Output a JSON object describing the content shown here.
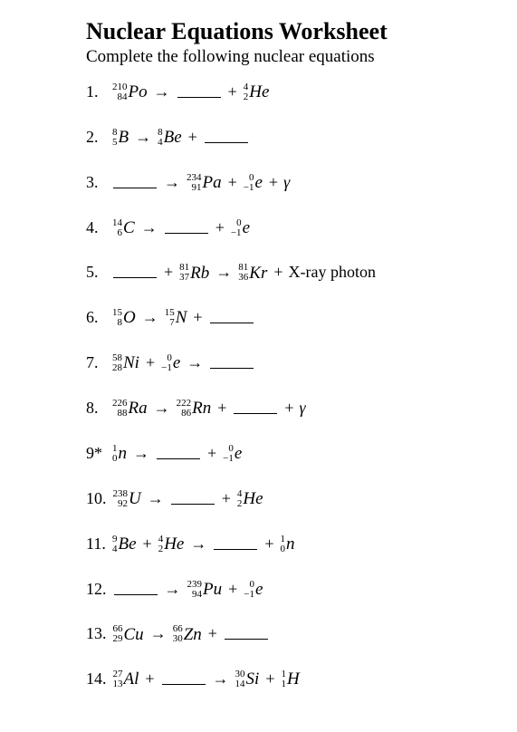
{
  "title": "Nuclear Equations Worksheet",
  "subtitle": "Complete the following nuclear equations",
  "blank": "",
  "equations": [
    {
      "n": "1.",
      "parts": [
        [
          "nuc",
          "210",
          "84",
          "Po"
        ],
        [
          "arr"
        ],
        [
          "blank"
        ],
        [
          "plus"
        ],
        [
          "nuc",
          "4",
          "2",
          "He"
        ]
      ]
    },
    {
      "n": "2.",
      "parts": [
        [
          "nuc",
          "8",
          "5",
          "B"
        ],
        [
          "arr"
        ],
        [
          "nuc",
          "8",
          "4",
          "Be"
        ],
        [
          "plus"
        ],
        [
          "blank"
        ]
      ]
    },
    {
      "n": "3.",
      "parts": [
        [
          "blank"
        ],
        [
          "arr"
        ],
        [
          "nuc",
          "234",
          "91",
          "Pa"
        ],
        [
          "plus"
        ],
        [
          "nuc",
          "0",
          "−1",
          "e"
        ],
        [
          "plus"
        ],
        [
          "txt",
          "γ"
        ]
      ]
    },
    {
      "n": "4.",
      "parts": [
        [
          "nuc",
          "14",
          "6",
          "C"
        ],
        [
          "arr"
        ],
        [
          "blank"
        ],
        [
          "plus"
        ],
        [
          "nuc",
          "0",
          "−1",
          "e"
        ]
      ]
    },
    {
      "n": "5.",
      "parts": [
        [
          "blank"
        ],
        [
          "plus"
        ],
        [
          "nuc",
          "81",
          "37",
          "Rb"
        ],
        [
          "arr"
        ],
        [
          "nuc",
          "81",
          "36",
          "Kr"
        ],
        [
          "plus"
        ],
        [
          "upright",
          "X-ray photon"
        ]
      ]
    },
    {
      "n": "6.",
      "parts": [
        [
          "nuc",
          "15",
          "8",
          "O"
        ],
        [
          "arr"
        ],
        [
          "nuc",
          "15",
          "7",
          "N"
        ],
        [
          "plus"
        ],
        [
          "blank"
        ]
      ]
    },
    {
      "n": "7.",
      "parts": [
        [
          "nuc",
          "58",
          "28",
          "Ni"
        ],
        [
          "plus"
        ],
        [
          "nuc",
          "0",
          "−1",
          "e"
        ],
        [
          "arr"
        ],
        [
          "blank"
        ]
      ]
    },
    {
      "n": "8.",
      "parts": [
        [
          "nuc",
          "226",
          "88",
          "Ra"
        ],
        [
          "arr"
        ],
        [
          "nuc",
          "222",
          "86",
          "Rn"
        ],
        [
          "plus"
        ],
        [
          "blank"
        ],
        [
          "plus"
        ],
        [
          "txt",
          "γ"
        ]
      ]
    },
    {
      "n": "9*",
      "parts": [
        [
          "nuc",
          "1",
          "0",
          "n"
        ],
        [
          "arr"
        ],
        [
          "blank"
        ],
        [
          "plus"
        ],
        [
          "nuc",
          "0",
          "−1",
          "e"
        ]
      ]
    },
    {
      "n": "10.",
      "parts": [
        [
          "nuc",
          "238",
          "92",
          "U"
        ],
        [
          "arr"
        ],
        [
          "blank"
        ],
        [
          "plus"
        ],
        [
          "nuc",
          "4",
          "2",
          "He"
        ]
      ]
    },
    {
      "n": "11.",
      "parts": [
        [
          "nuc",
          "9",
          "4",
          "Be"
        ],
        [
          "plus"
        ],
        [
          "nuc",
          "4",
          "2",
          "He"
        ],
        [
          "arr"
        ],
        [
          "blank"
        ],
        [
          "plus"
        ],
        [
          "nuc",
          "1",
          "0",
          "n"
        ]
      ]
    },
    {
      "n": "12.",
      "parts": [
        [
          "blank"
        ],
        [
          "arr"
        ],
        [
          "nuc",
          "239",
          "94",
          "Pu"
        ],
        [
          "plus"
        ],
        [
          "nuc",
          "0",
          "−1",
          "e"
        ]
      ]
    },
    {
      "n": "13.",
      "parts": [
        [
          "nuc",
          "66",
          "29",
          "Cu"
        ],
        [
          "arr"
        ],
        [
          "nuc",
          "66",
          "30",
          "Zn"
        ],
        [
          "plus"
        ],
        [
          "blank"
        ]
      ]
    },
    {
      "n": "14.",
      "parts": [
        [
          "nuc",
          "27",
          "13",
          "Al"
        ],
        [
          "plus"
        ],
        [
          "blank"
        ],
        [
          "arr"
        ],
        [
          "nuc",
          "30",
          "14",
          "Si"
        ],
        [
          "plus"
        ],
        [
          "nuc",
          "1",
          "1",
          "H"
        ]
      ]
    }
  ]
}
